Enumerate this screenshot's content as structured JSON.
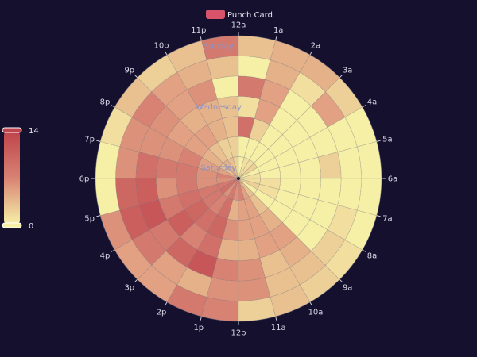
{
  "chart_data": {
    "type": "heatmap",
    "coordinate": "polar",
    "legend": [
      "Punch Card"
    ],
    "hours": [
      "12a",
      "1a",
      "2a",
      "3a",
      "4a",
      "5a",
      "6a",
      "7a",
      "8a",
      "9a",
      "10a",
      "11a",
      "12p",
      "1p",
      "2p",
      "3p",
      "4p",
      "5p",
      "6p",
      "7p",
      "8p",
      "9p",
      "10p",
      "11p"
    ],
    "days_inner_to_outer": [
      "Saturday",
      "Friday",
      "Thursday",
      "Wednesday",
      "Tuesday",
      "Monday",
      "Sunday"
    ],
    "visible_day_labels": [
      "Saturday",
      "Wednesday",
      "Sunday"
    ],
    "visual_map": {
      "min": 0,
      "max": 14,
      "min_label": "0",
      "max_label": "14",
      "colors": [
        "#f6efa6",
        "#d88273",
        "#bf444c"
      ]
    },
    "values": [
      [
        0,
        1,
        1,
        2,
        0,
        1,
        1,
        2,
        0,
        3,
        5,
        7,
        6,
        8,
        6,
        9,
        8,
        6,
        7,
        5,
        3,
        4,
        3,
        2
      ],
      [
        0,
        0,
        0,
        0,
        0,
        0,
        1,
        1,
        0,
        3,
        5,
        5,
        4,
        9,
        7,
        8,
        8,
        6,
        6,
        5,
        4,
        3,
        2,
        2
      ],
      [
        9,
        2,
        0,
        0,
        0,
        0,
        0,
        0,
        0,
        4,
        5,
        5,
        6,
        10,
        9,
        10,
        9,
        8,
        8,
        7,
        5,
        5,
        4,
        3
      ],
      [
        1,
        5,
        0,
        0,
        0,
        0,
        0,
        0,
        0,
        5,
        5,
        4,
        4,
        9,
        7,
        11,
        8,
        6,
        8,
        6,
        5,
        4,
        4,
        3
      ],
      [
        8,
        5,
        0,
        0,
        0,
        2,
        0,
        0,
        0,
        4,
        3,
        6,
        7,
        12,
        10,
        8,
        12,
        11,
        9,
        6,
        6,
        5,
        6,
        0
      ],
      [
        0,
        4,
        1,
        5,
        0,
        0,
        0,
        1,
        2,
        3,
        3,
        6,
        6,
        4,
        5,
        8,
        11,
        10,
        6,
        6,
        7,
        5,
        4,
        3
      ],
      [
        3,
        4,
        4,
        2,
        0,
        0,
        0,
        0,
        1,
        2,
        3,
        2,
        7,
        8,
        5,
        5,
        6,
        0,
        0,
        1,
        3,
        2,
        3,
        8
      ]
    ]
  }
}
